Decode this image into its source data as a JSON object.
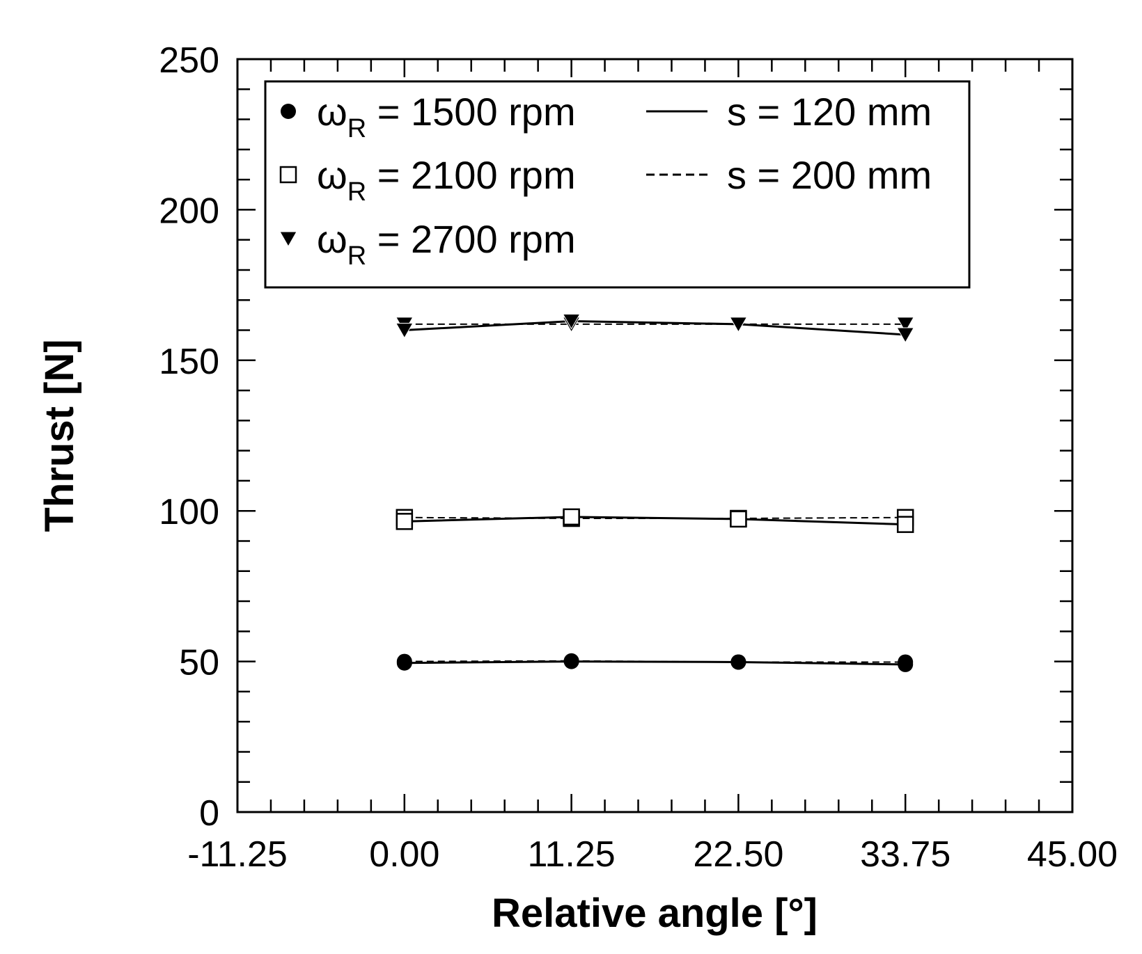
{
  "chart_data": {
    "type": "line",
    "xlabel": "Relative angle [°]",
    "ylabel": "Thrust [N]",
    "xlim": [
      -11.25,
      45.0
    ],
    "ylim": [
      0,
      250
    ],
    "x_ticks": [
      "-11.25",
      "0.00",
      "11.25",
      "22.50",
      "33.75",
      "45.00"
    ],
    "y_ticks": [
      "0",
      "50",
      "100",
      "150",
      "200",
      "250"
    ],
    "x": [
      0.0,
      11.25,
      22.5,
      33.75
    ],
    "legend_placement": "top-left inside",
    "legend": {
      "markers": [
        {
          "symbol": "ω",
          "subscript": "R",
          "text": " = 1500 rpm",
          "marker": "filled-circle"
        },
        {
          "symbol": "ω",
          "subscript": "R",
          "text": " = 2100 rpm",
          "marker": "open-square"
        },
        {
          "symbol": "ω",
          "subscript": "R",
          "text": " = 2700 rpm",
          "marker": "filled-triangle-down"
        }
      ],
      "lines": [
        {
          "text": "s = 120 mm",
          "style": "solid"
        },
        {
          "text": "s = 200 mm",
          "style": "dashed"
        }
      ]
    },
    "series": [
      {
        "speed": "1500 rpm",
        "spacing": "120 mm",
        "marker": "filled-circle",
        "line": "solid",
        "values": [
          49.5,
          50.0,
          49.8,
          49.0
        ]
      },
      {
        "speed": "1500 rpm",
        "spacing": "200 mm",
        "marker": "filled-circle",
        "line": "dashed",
        "values": [
          50.0,
          50.2,
          49.8,
          49.8
        ]
      },
      {
        "speed": "2100 rpm",
        "spacing": "120 mm",
        "marker": "open-square",
        "line": "solid",
        "values": [
          96.5,
          98.0,
          97.3,
          95.5
        ]
      },
      {
        "speed": "2100 rpm",
        "spacing": "200 mm",
        "marker": "open-square",
        "line": "dashed",
        "values": [
          97.8,
          97.5,
          97.5,
          97.8
        ]
      },
      {
        "speed": "2700 rpm",
        "spacing": "120 mm",
        "marker": "filled-triangle-down",
        "line": "solid",
        "values": [
          160.0,
          163.0,
          162.0,
          158.5
        ]
      },
      {
        "speed": "2700 rpm",
        "spacing": "200 mm",
        "marker": "filled-triangle-down",
        "line": "dashed",
        "values": [
          162.0,
          162.0,
          162.0,
          162.0
        ]
      }
    ],
    "grid": false,
    "colors": {
      "ink": "#000000",
      "background": "#ffffff"
    }
  }
}
